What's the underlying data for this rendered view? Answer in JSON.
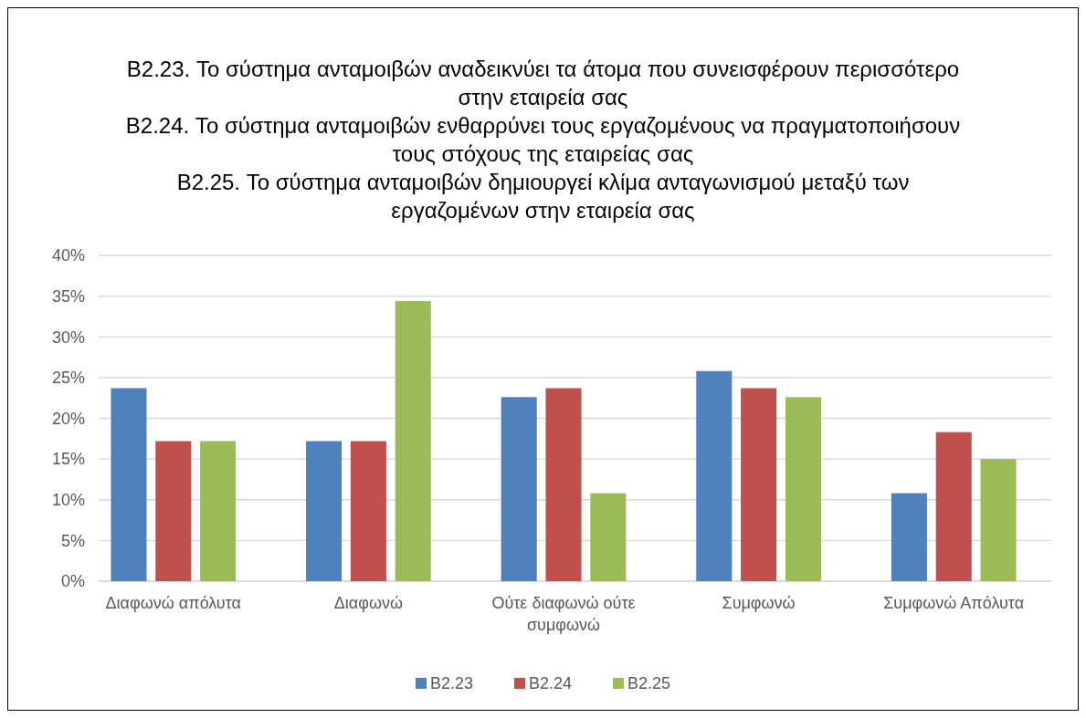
{
  "chart_data": {
    "type": "bar",
    "title": "B2.23. Το σύστημα ανταμοιβών αναδεικνύει τα άτομα που συνεισφέρουν περισσότερο\nστην εταιρεία σας\nB2.24. Το σύστημα ανταμοιβών ενθαρρύνει τους εργαζομένους να πραγματοποιήσουν\nτους στόχους της εταιρείας σας\nB2.25. Το σύστημα ανταμοιβών δημιουργεί κλίμα ανταγωνισμού μεταξύ των\nεργαζομένων στην εταιρεία σας",
    "categories": [
      "Διαφωνώ απόλυτα",
      "Διαφωνώ",
      "Ούτε διαφωνώ ούτε συμφωνώ",
      "Συμφωνώ",
      "Συμφωνώ Απόλυτα"
    ],
    "series": [
      {
        "name": "B2.23",
        "color": "#4f81bd",
        "values": [
          23.7,
          17.2,
          22.6,
          25.8,
          10.8
        ]
      },
      {
        "name": "B2.24",
        "color": "#c0504d",
        "values": [
          17.2,
          17.2,
          23.7,
          23.7,
          18.3
        ]
      },
      {
        "name": "B2.25",
        "color": "#9bbb59",
        "values": [
          17.2,
          34.4,
          10.8,
          22.6,
          15.0
        ]
      }
    ],
    "ylim": [
      0,
      40
    ],
    "yticks": [
      {
        "value": 0,
        "label": "0%"
      },
      {
        "value": 5,
        "label": "5%"
      },
      {
        "value": 10,
        "label": "10%"
      },
      {
        "value": 15,
        "label": "15%"
      },
      {
        "value": 20,
        "label": "20%"
      },
      {
        "value": 25,
        "label": "25%"
      },
      {
        "value": 30,
        "label": "30%"
      },
      {
        "value": 35,
        "label": "35%"
      },
      {
        "value": 40,
        "label": "40%"
      }
    ],
    "grid": "y",
    "legend": "bottom"
  }
}
